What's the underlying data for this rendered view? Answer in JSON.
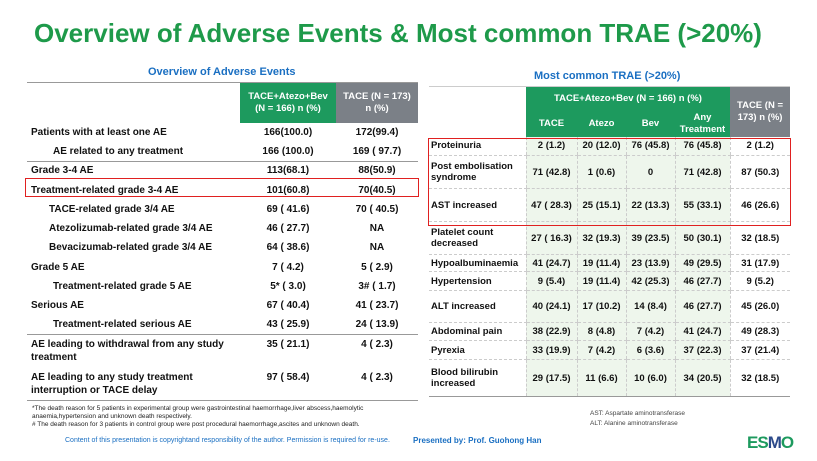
{
  "title": "Overview of Adverse Events & Most common TRAE (>20%)",
  "left": {
    "title": "Overview of Adverse Events",
    "headers": [
      "TACE+Atezo+Bev (N = 166) n (%)",
      "TACE (N = 173) n (%)"
    ],
    "rows": [
      {
        "label": "Patients with at least one AE",
        "a": "166(100.0)",
        "b": "172(99.4)"
      },
      {
        "label": "AE related to any treatment",
        "a": "166 (100.0)",
        "b": "169 ( 97.7)"
      },
      {
        "label": "Grade 3-4 AE",
        "a": "113(68.1)",
        "b": "88(50.9)"
      },
      {
        "label": "Treatment-related grade 3-4 AE",
        "a": "101(60.8)",
        "b": "70(40.5)"
      },
      {
        "label": "TACE-related grade 3/4 AE",
        "a": "69 ( 41.6)",
        "b": "70 ( 40.5)"
      },
      {
        "label": "Atezolizumab-related grade 3/4 AE",
        "a": "46 ( 27.7)",
        "b": "NA"
      },
      {
        "label": "Bevacizumab-related grade 3/4 AE",
        "a": "64 ( 38.6)",
        "b": "NA"
      },
      {
        "label": "Grade 5 AE",
        "a": "7 ( 4.2)",
        "b": "5 ( 2.9)"
      },
      {
        "label": "Treatment-related grade 5 AE",
        "a": "5* ( 3.0)",
        "b": "3# ( 1.7)"
      },
      {
        "label": "Serious AE",
        "a": "67 ( 40.4)",
        "b": "41 ( 23.7)"
      },
      {
        "label": "Treatment-related serious AE",
        "a": "43 ( 25.9)",
        "b": "24 ( 13.9)"
      },
      {
        "label": "AE leading to withdrawal from any study treatment",
        "a": "35 ( 21.1)",
        "b": "4 ( 2.3)"
      },
      {
        "label": "AE leading to any study treatment interruption or TACE delay",
        "a": "97 ( 58.4)",
        "b": "4 ( 2.3)"
      }
    ],
    "footnote1": "*The death reason for 5 patients in experimental group were  gastrointestinal haemorrhage,liver abscess,haemolytic anaemia,hypertension and unknown death respectively.",
    "footnote2": "# The death reason for 3 patients in control group were post procedural haemorrhage,ascites and unknown death."
  },
  "right": {
    "title": "Most common TRAE (>20%)",
    "group_header": "TACE+Atezo+Bev (N = 166) n (%)",
    "control_header": "TACE (N = 173) n (%)",
    "subheaders": [
      "TACE",
      "Atezo",
      "Bev",
      "Any Treatment"
    ],
    "rows": [
      {
        "label": "Proteinuria",
        "v": [
          "2 (1.2)",
          "20 (12.0)",
          "76 (45.8)",
          "76 (45.8)",
          "2 (1.2)"
        ]
      },
      {
        "label": "Post embolisation syndrome",
        "v": [
          "71 (42.8)",
          "1 (0.6)",
          "0",
          "71 (42.8)",
          "87 (50.3)"
        ]
      },
      {
        "label": "AST increased",
        "v": [
          "47 ( 28.3)",
          "25 (15.1)",
          "22 (13.3)",
          "55 (33.1)",
          "46 (26.6)"
        ]
      },
      {
        "label": "Platelet count decreased",
        "v": [
          "27 ( 16.3)",
          "32 (19.3)",
          "39 (23.5)",
          "50 (30.1)",
          "32 (18.5)"
        ]
      },
      {
        "label": "Hypoalbuminaemia",
        "v": [
          "41 (24.7)",
          "19 (11.4)",
          "23 (13.9)",
          "49 (29.5)",
          "31 (17.9)"
        ]
      },
      {
        "label": "Hypertension",
        "v": [
          "9 (5.4)",
          "19 (11.4)",
          "42 (25.3)",
          "46 (27.7)",
          "9 (5.2)"
        ]
      },
      {
        "label": "ALT increased",
        "v": [
          "40 (24.1)",
          "17 (10.2)",
          "14 (8.4)",
          "46 (27.7)",
          "45 (26.0)"
        ]
      },
      {
        "label": "Abdominal pain",
        "v": [
          "38 (22.9)",
          "8 (4.8)",
          "7 (4.2)",
          "41 (24.7)",
          "49 (28.3)"
        ]
      },
      {
        "label": "Pyrexia",
        "v": [
          "33 (19.9)",
          "7 (4.2)",
          "6 (3.6)",
          "37 (22.3)",
          "37 (21.4)"
        ]
      },
      {
        "label": "Blood bilirubin increased",
        "v": [
          "29 (17.5)",
          "11 (6.6)",
          "10 (6.0)",
          "34 (20.5)",
          "32 (18.5)"
        ]
      }
    ],
    "abbr1": "AST: Aspartate aminotransferase",
    "abbr2": "ALT: Alanine aminotransferase"
  },
  "footer": {
    "copyright": "Content of this presentation is copyrightand responsibility of the author. Permission is required for re-use.",
    "presenter": "Presented by: Prof. Guohong Han",
    "logo": "ESMO",
    "logo_tagline": "GOOD SCIENCE BETTER MEDICINE BEST PRACTICE"
  },
  "colors": {
    "title": "#1e9a4a",
    "green_header": "#1d9a5e",
    "gray_header": "#7b8087",
    "accent_blue": "#1a6fc2",
    "highlight": "#e02020"
  }
}
